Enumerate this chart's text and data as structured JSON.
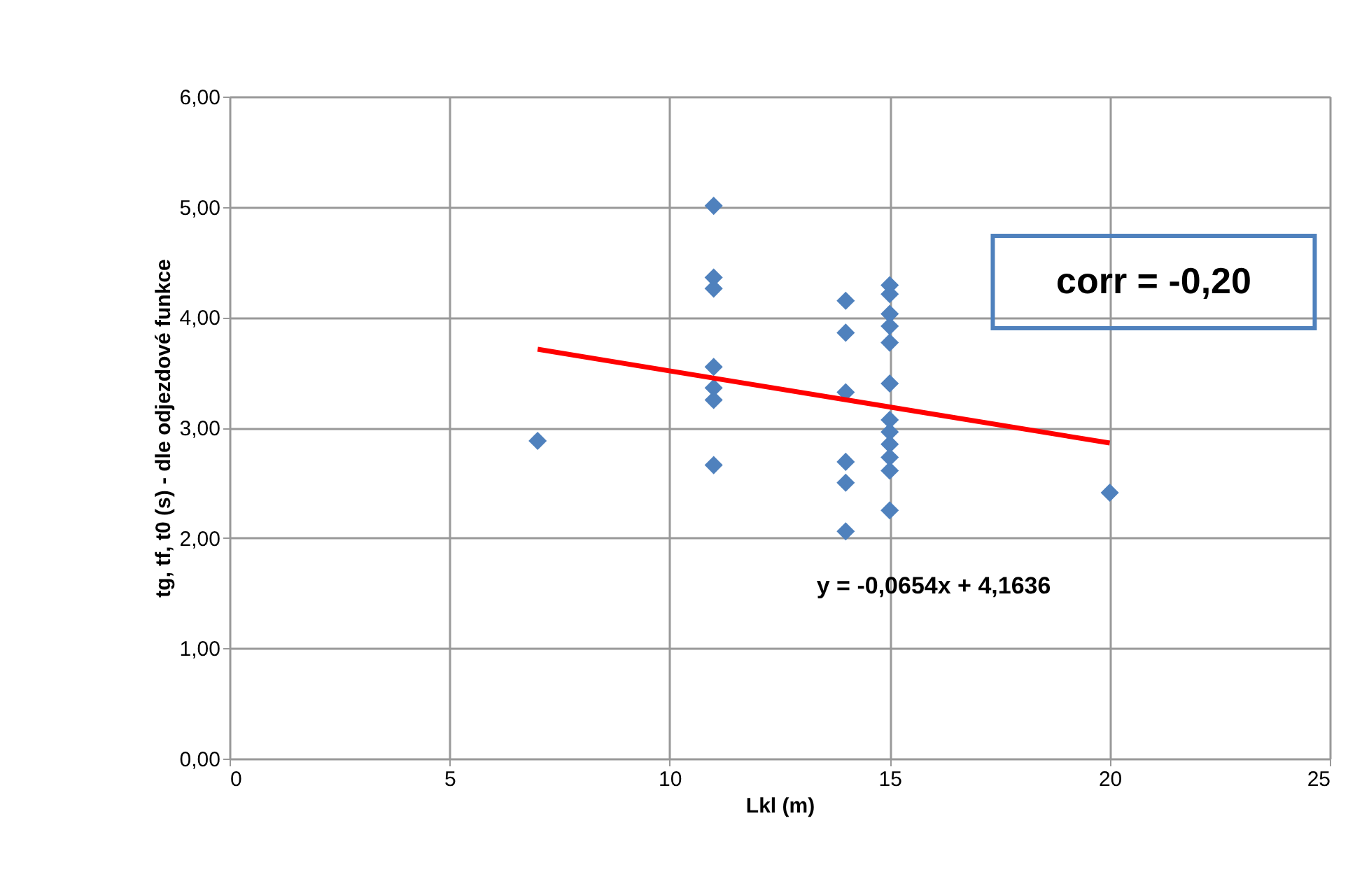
{
  "chart_data": {
    "type": "scatter",
    "xlabel": "Lkl (m)",
    "ylabel": "tg, tf, t0 (s) - dle odjezdové funkce",
    "xlim": [
      0,
      25
    ],
    "xticks": [
      0,
      5,
      10,
      15,
      20,
      25
    ],
    "ylim": [
      0,
      6
    ],
    "yticks": [
      {
        "value": 0,
        "label": "0,00"
      },
      {
        "value": 1,
        "label": "1,00"
      },
      {
        "value": 2,
        "label": "2,00"
      },
      {
        "value": 3,
        "label": "3,00"
      },
      {
        "value": 4,
        "label": "4,00"
      },
      {
        "value": 5,
        "label": "5,00"
      },
      {
        "value": 6,
        "label": "6,00"
      }
    ],
    "grid": true,
    "legend": false,
    "marker": "diamond",
    "series": [
      {
        "color": "#4f81bd",
        "x": [
          7,
          11,
          11,
          11,
          11,
          11,
          11,
          11,
          14,
          14,
          14,
          14,
          14,
          14,
          15,
          15,
          15,
          15,
          15,
          15,
          15,
          15,
          15,
          15,
          15,
          15,
          20
        ],
        "values": [
          2.88,
          5.01,
          4.36,
          4.26,
          3.55,
          3.36,
          3.25,
          2.66,
          4.15,
          3.86,
          3.32,
          2.69,
          2.5,
          2.06,
          4.29,
          4.21,
          4.03,
          3.92,
          3.77,
          3.4,
          3.07,
          2.96,
          2.85,
          2.73,
          2.61,
          2.25,
          2.41
        ]
      },
      {
        "type": "line",
        "color": "#ff0000",
        "x": [
          7,
          20
        ],
        "values": [
          3.71,
          2.86
        ],
        "marker": "none"
      }
    ],
    "annotations": [
      "y = -0,0654x + 4,1636",
      "corr = -0,20"
    ]
  }
}
